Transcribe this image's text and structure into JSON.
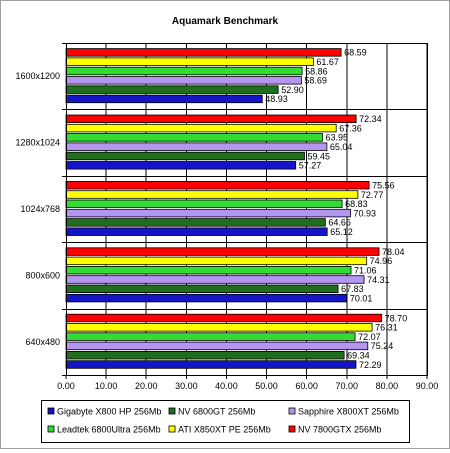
{
  "chart_data": {
    "type": "bar",
    "orientation": "horizontal",
    "title": "Aquamark Benchmark",
    "xlabel": "",
    "ylabel": "",
    "xlim": [
      0,
      90
    ],
    "x_ticks": [
      "0.00",
      "10.00",
      "20.00",
      "30.00",
      "40.00",
      "50.00",
      "60.00",
      "70.00",
      "80.00",
      "90.00"
    ],
    "categories": [
      "1600x1200",
      "1280x1024",
      "1024x768",
      "800x600",
      "640x480"
    ],
    "series": [
      {
        "name": "Gigabyte X800 HP 256Mb",
        "color": "#1414c8",
        "values": [
          48.93,
          57.27,
          65.12,
          70.01,
          72.29
        ],
        "labels": [
          "48.93",
          "57.27",
          "65.12",
          "70.01",
          "72.29"
        ]
      },
      {
        "name": "NV 6800GT 256Mb",
        "color": "#1e6e1e",
        "values": [
          52.9,
          59.45,
          64.66,
          67.83,
          69.34
        ],
        "labels": [
          "52.90",
          "59.45",
          "64.66",
          "67.83",
          "69.34"
        ]
      },
      {
        "name": "Sapphire X800XT 256Mb",
        "color": "#b496f0",
        "values": [
          58.69,
          65.04,
          70.93,
          74.31,
          75.24
        ],
        "labels": [
          "58.69",
          "65.04",
          "70.93",
          "74.31",
          "75.24"
        ]
      },
      {
        "name": "Leadtek 6800Ultra 256Mb",
        "color": "#32dc32",
        "values": [
          58.86,
          63.95,
          68.83,
          71.06,
          72.07
        ],
        "labels": [
          "58.86",
          "63.95",
          "68.83",
          "71.06",
          "72.07"
        ]
      },
      {
        "name": "ATI X850XT PE 256Mb",
        "color": "#ffff00",
        "values": [
          61.67,
          67.36,
          72.77,
          74.96,
          76.31
        ],
        "labels": [
          "61.67",
          "67.36",
          "72.77",
          "74.96",
          "76.31"
        ]
      },
      {
        "name": "NV 7800GTX 256Mb",
        "color": "#ff0000",
        "values": [
          68.59,
          72.34,
          75.56,
          78.04,
          78.7
        ],
        "labels": [
          "68.59",
          "72.34",
          "75.56",
          "78.04",
          "78.70"
        ]
      }
    ],
    "grid": true,
    "plot_background": "#ffffff",
    "legend_position": "bottom"
  }
}
